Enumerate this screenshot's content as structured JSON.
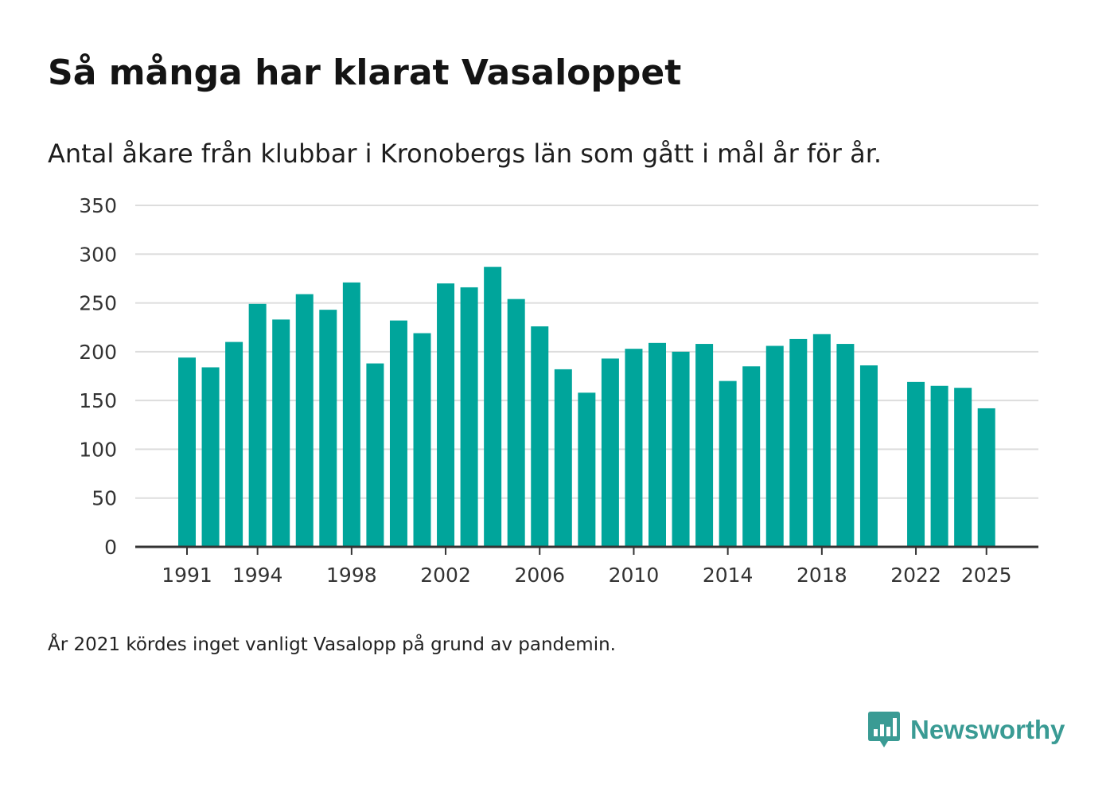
{
  "header": {
    "title": "Så många har klarat Vasaloppet",
    "subtitle": "Antal åkare från klubbar i Kronobergs län som gått i mål år för år."
  },
  "footer": {
    "note": "År 2021 kördes inget vanligt Vasalopp på grund av pandemin.",
    "brand": "Newsworthy"
  },
  "colors": {
    "bar": "#00a59b",
    "grid": "#dddddd",
    "axis": "#333333",
    "brand": "#3a9b94"
  },
  "chart_data": {
    "type": "bar",
    "title": "Så många har klarat Vasaloppet",
    "subtitle": "Antal åkare från klubbar i Kronobergs län som gått i mål år för år.",
    "xlabel": "",
    "ylabel": "",
    "ylim": [
      0,
      350
    ],
    "yticks": [
      0,
      50,
      100,
      150,
      200,
      250,
      300,
      350
    ],
    "xticks": [
      1991,
      1994,
      1998,
      2002,
      2006,
      2010,
      2014,
      2018,
      2022,
      2025
    ],
    "grid": true,
    "legend": "none",
    "categories": [
      1991,
      1992,
      1993,
      1994,
      1995,
      1996,
      1997,
      1998,
      1999,
      2000,
      2001,
      2002,
      2003,
      2004,
      2005,
      2006,
      2007,
      2008,
      2009,
      2010,
      2011,
      2012,
      2013,
      2014,
      2015,
      2016,
      2017,
      2018,
      2019,
      2020,
      2021,
      2022,
      2023,
      2024,
      2025
    ],
    "values": [
      194,
      184,
      210,
      249,
      233,
      259,
      243,
      271,
      188,
      232,
      219,
      270,
      266,
      287,
      254,
      226,
      182,
      158,
      193,
      203,
      209,
      200,
      208,
      170,
      185,
      206,
      213,
      218,
      208,
      186,
      null,
      169,
      165,
      163,
      142
    ],
    "annotation": "År 2021 kördes inget vanligt Vasalopp på grund av pandemin."
  }
}
